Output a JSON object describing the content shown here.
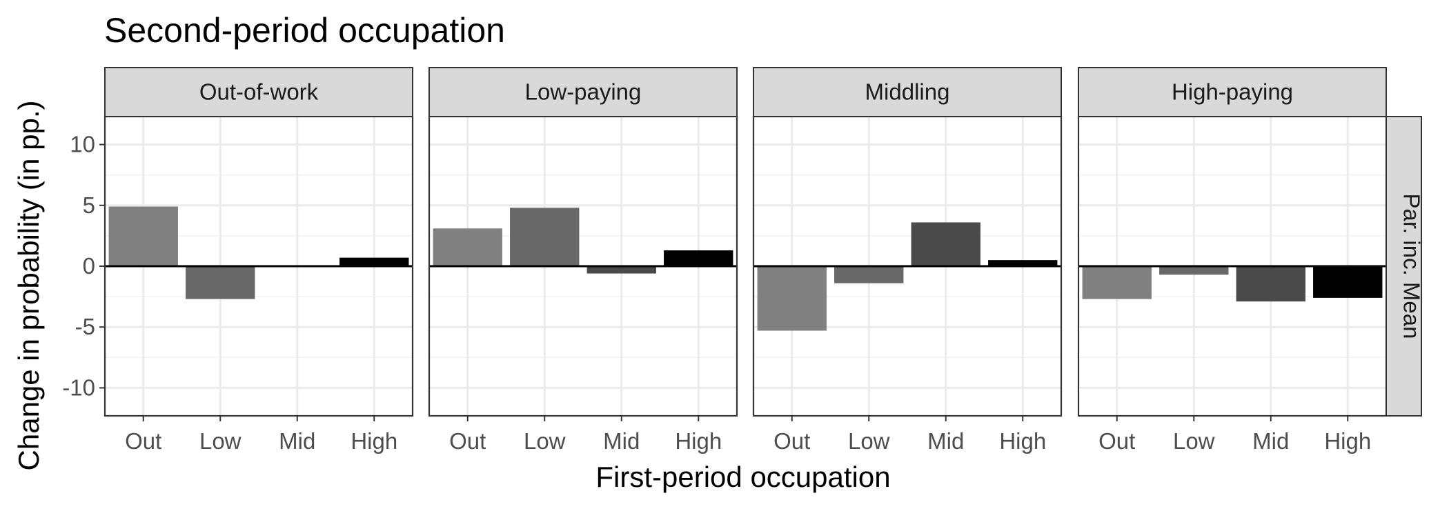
{
  "chart_data": {
    "type": "bar",
    "title": "Second-period occupation",
    "xlabel": "First-period occupation",
    "ylabel": "Change in probability (in pp.)",
    "row_strip": "Par. inc. Mean",
    "categories": [
      "Out",
      "Low",
      "Mid",
      "High"
    ],
    "ylim": [
      -12.3,
      12.3
    ],
    "yticks": [
      -10,
      -5,
      0,
      5,
      10
    ],
    "grid": true,
    "zero_line": true,
    "bar_colors": [
      "#808080",
      "#686868",
      "#4a4a4a",
      "#000000"
    ],
    "panels": [
      {
        "name": "Out-of-work",
        "values": [
          4.9,
          -2.7,
          0.0,
          0.7
        ]
      },
      {
        "name": "Low-paying",
        "values": [
          3.1,
          4.8,
          -0.6,
          1.3
        ]
      },
      {
        "name": "Middling",
        "values": [
          -5.3,
          -1.4,
          3.6,
          0.5
        ]
      },
      {
        "name": "High-paying",
        "values": [
          -2.7,
          -0.7,
          -2.9,
          -2.6
        ]
      }
    ]
  }
}
